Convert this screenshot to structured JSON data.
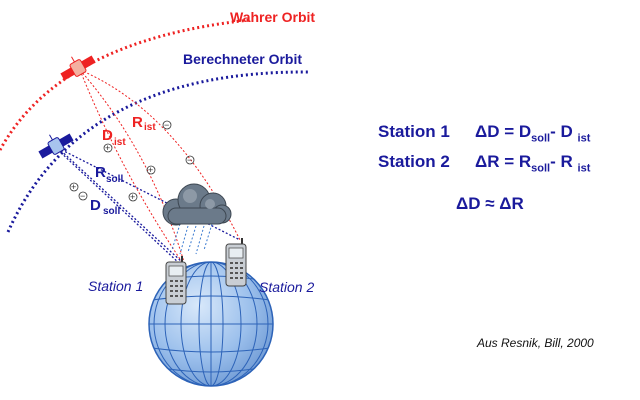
{
  "labels": {
    "true_orbit": "Wahrer Orbit",
    "computed_orbit": "Berechneter Orbit",
    "r_ist_main": "R",
    "r_ist_sub": "ist",
    "d_ist_main": "D",
    "d_ist_sub": "ist",
    "r_soll_main": "R",
    "r_soll_sub": "soll",
    "d_soll_main": "D",
    "d_soll_sub": "soll",
    "station1": "Station 1",
    "station2": "Station 2",
    "plus": "+",
    "minus": "−"
  },
  "formulas": {
    "line1": {
      "station": "Station 1",
      "lhs": "ΔD = D",
      "sub1": "soll",
      "mid": "- D",
      "sub2": "ist"
    },
    "line2": {
      "station": "Station 2",
      "lhs": "ΔR = R",
      "sub1": "soll",
      "mid": "- R",
      "sub2": "ist"
    },
    "line3": "ΔD ≈ ΔR"
  },
  "source": "Aus Resnik, Bill, 2000",
  "colors": {
    "true_orbit": "#ee2222",
    "computed_orbit": "#1a1a9c",
    "globe": "#8fb6e6",
    "globe_lines": "#2d63b8",
    "cloud": "#6b7a8a"
  }
}
